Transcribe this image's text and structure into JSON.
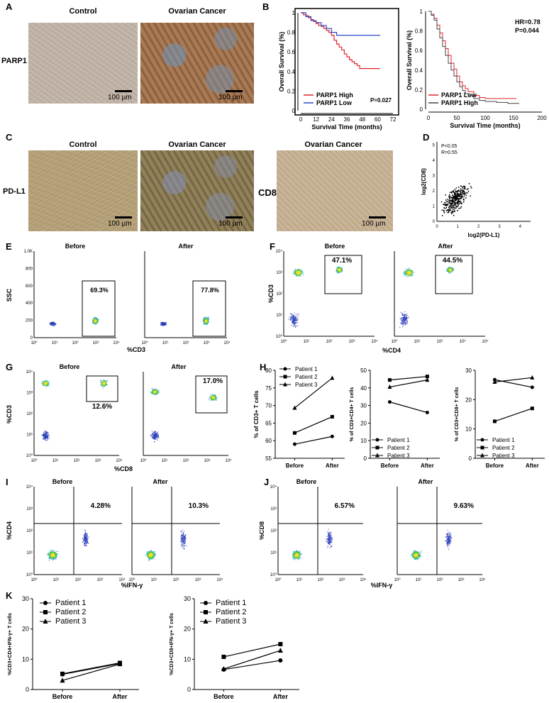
{
  "panels": {
    "A": {
      "letter": "A",
      "left_title": "Control",
      "right_title": "Ovarian Cancer",
      "row_label": "PARP1",
      "scale": "100 µm"
    },
    "B": {
      "letter": "B"
    },
    "C": {
      "letter": "C",
      "t1": "Control",
      "t2": "Ovarian Cancer",
      "t3": "Ovarian Cancer",
      "row_label": "PD-L1",
      "cd8_label": "CD8",
      "scale": "100 µm"
    },
    "D": {
      "letter": "D",
      "stat1": "P<0.05",
      "stat2": "R=0.55",
      "xlabel": "log2(PD-L1)",
      "ylabel": "log2(CD8)"
    },
    "E": {
      "letter": "E",
      "before": "Before",
      "after": "After",
      "ylabel": "SSC",
      "xlabel": "%CD3",
      "pct_before": "69.3%",
      "pct_after": "77.8%"
    },
    "F": {
      "letter": "F",
      "before": "Before",
      "after": "After",
      "ylabel": "%CD3",
      "xlabel": "%CD4",
      "pct_before": "47.1%",
      "pct_after": "44.5%"
    },
    "G": {
      "letter": "G",
      "before": "Before",
      "after": "After",
      "ylabel": "%CD3",
      "xlabel": "%CD8",
      "pct_before": "12.6%",
      "pct_after": "17.0%"
    },
    "H": {
      "letter": "H"
    },
    "I": {
      "letter": "I",
      "before": "Before",
      "after": "After",
      "ylabel": "%CD4",
      "xlabel": "%IFN-γ",
      "pct_before": "4.28%",
      "pct_after": "10.3%"
    },
    "J": {
      "letter": "J",
      "before": "Before",
      "after": "After",
      "ylabel": "%CD8",
      "xlabel": "%IFN-γ",
      "pct_before": "6.57%",
      "pct_after": "9.63%"
    },
    "K": {
      "letter": "K"
    }
  },
  "chart_data": [
    {
      "id": "B1",
      "type": "line",
      "xlabel": "Survival Time (months)",
      "ylabel": "Overall Survival (%)",
      "xticks": [
        0,
        12,
        24,
        36,
        48,
        60,
        72
      ],
      "yticks": [
        0,
        0.2,
        0.4,
        0.6,
        0.8,
        1.0
      ],
      "xlim": [
        0,
        72
      ],
      "ylim": [
        0,
        1.0
      ],
      "annotation": "P=0.027",
      "series": [
        {
          "name": "PARP1 High",
          "color": "#e0242a",
          "x": [
            0,
            2,
            4,
            6,
            8,
            10,
            12,
            14,
            16,
            18,
            20,
            22,
            24,
            26,
            28,
            30,
            32,
            34,
            36,
            38,
            40,
            42,
            44,
            46,
            50,
            56,
            62
          ],
          "y": [
            1.0,
            0.98,
            0.97,
            0.95,
            0.93,
            0.91,
            0.89,
            0.87,
            0.86,
            0.84,
            0.82,
            0.8,
            0.77,
            0.72,
            0.68,
            0.65,
            0.62,
            0.58,
            0.55,
            0.52,
            0.5,
            0.48,
            0.46,
            0.43,
            0.43,
            0.43,
            0.43
          ]
        },
        {
          "name": "PARP1 Low",
          "color": "#2a48c8",
          "x": [
            0,
            4,
            8,
            12,
            16,
            20,
            24,
            28,
            32,
            40,
            50,
            62
          ],
          "y": [
            1.0,
            0.96,
            0.92,
            0.9,
            0.87,
            0.84,
            0.8,
            0.77,
            0.77,
            0.77,
            0.77,
            0.77
          ]
        }
      ]
    },
    {
      "id": "B2",
      "type": "line",
      "xlabel": "Survival Time (months)",
      "ylabel": "Overall Survival (%)",
      "xticks": [
        0,
        50,
        100,
        150,
        200
      ],
      "yticks": [
        0,
        0.2,
        0.4,
        0.6,
        0.8,
        1.0
      ],
      "xlim": [
        0,
        200
      ],
      "ylim": [
        0,
        1.0
      ],
      "annotation1": "HR=0.78",
      "annotation2": "P=0.044",
      "series": [
        {
          "name": "PARP1  Low",
          "color": "#e0242a",
          "x": [
            0,
            5,
            10,
            15,
            20,
            25,
            30,
            35,
            40,
            45,
            50,
            55,
            60,
            65,
            70,
            80,
            90,
            100,
            120,
            140,
            155
          ],
          "y": [
            1.0,
            0.97,
            0.93,
            0.86,
            0.78,
            0.7,
            0.62,
            0.55,
            0.47,
            0.41,
            0.34,
            0.28,
            0.24,
            0.21,
            0.18,
            0.14,
            0.12,
            0.11,
            0.11,
            0.11,
            0.11
          ]
        },
        {
          "name": "PARP1  High",
          "color": "#444444",
          "x": [
            0,
            5,
            10,
            15,
            20,
            25,
            30,
            35,
            40,
            45,
            50,
            55,
            60,
            65,
            70,
            80,
            90,
            100,
            120,
            140,
            160
          ],
          "y": [
            1.0,
            0.96,
            0.91,
            0.82,
            0.73,
            0.64,
            0.55,
            0.47,
            0.4,
            0.34,
            0.28,
            0.23,
            0.19,
            0.16,
            0.14,
            0.11,
            0.09,
            0.08,
            0.07,
            0.06,
            0.06
          ]
        }
      ]
    },
    {
      "id": "H1",
      "type": "line",
      "ylabel": "% of CD3+ T cells",
      "categories": [
        "Before",
        "After"
      ],
      "yticks": [
        55,
        60,
        65,
        70,
        75,
        80
      ],
      "ylim": [
        55,
        80
      ],
      "series": [
        {
          "name": "Patient 1",
          "marker": "circle",
          "values": [
            59.0,
            61.2
          ]
        },
        {
          "name": "Patient 2",
          "marker": "square",
          "values": [
            62.2,
            66.8
          ]
        },
        {
          "name": "Patient 3",
          "marker": "triangle",
          "values": [
            69.3,
            77.8
          ]
        }
      ]
    },
    {
      "id": "H2",
      "type": "line",
      "ylabel": "% of CD3+CD4+ T cells",
      "categories": [
        "Before",
        "After"
      ],
      "yticks": [
        0,
        10,
        20,
        30,
        40,
        50
      ],
      "ylim": [
        0,
        50
      ],
      "series": [
        {
          "name": "Patient 1",
          "marker": "circle",
          "values": [
            32.0,
            26.0
          ]
        },
        {
          "name": "Patient 2",
          "marker": "square",
          "values": [
            44.5,
            46.5
          ]
        },
        {
          "name": "Patient 3",
          "marker": "triangle",
          "values": [
            40.5,
            44.5
          ]
        }
      ]
    },
    {
      "id": "H3",
      "type": "line",
      "ylabel": "% of CD3+CD8+ T cells",
      "categories": [
        "Before",
        "After"
      ],
      "yticks": [
        0,
        10,
        20,
        30
      ],
      "ylim": [
        0,
        30
      ],
      "series": [
        {
          "name": "Patient 1",
          "marker": "circle",
          "values": [
            26.8,
            24.2
          ]
        },
        {
          "name": "Patient 2",
          "marker": "square",
          "values": [
            12.6,
            17.0
          ]
        },
        {
          "name": "Patient 3",
          "marker": "triangle",
          "values": [
            26.0,
            27.5
          ]
        }
      ]
    },
    {
      "id": "K1",
      "type": "line",
      "ylabel": "%CD3+CD4+IFN-γ+ T cells",
      "categories": [
        "Before",
        "After"
      ],
      "yticks": [
        0,
        10,
        20,
        30
      ],
      "ylim": [
        0,
        30
      ],
      "series": [
        {
          "name": "Patient 1",
          "marker": "circle",
          "values": [
            5.0,
            8.6
          ]
        },
        {
          "name": "Patient 2",
          "marker": "square",
          "values": [
            5.2,
            8.8
          ]
        },
        {
          "name": "Patient 3",
          "marker": "triangle",
          "values": [
            3.0,
            8.4
          ]
        }
      ]
    },
    {
      "id": "K2",
      "type": "line",
      "ylabel": "%CD3+CD8+IFN-γ+ T cells",
      "categories": [
        "Before",
        "After"
      ],
      "yticks": [
        0,
        10,
        20,
        30
      ],
      "ylim": [
        0,
        30
      ],
      "series": [
        {
          "name": "Patient 1",
          "marker": "circle",
          "values": [
            6.6,
            9.6
          ]
        },
        {
          "name": "Patient 2",
          "marker": "square",
          "values": [
            10.8,
            15.0
          ]
        },
        {
          "name": "Patient 3",
          "marker": "triangle",
          "values": [
            6.8,
            12.9
          ]
        }
      ]
    },
    {
      "id": "D",
      "type": "scatter",
      "xlabel": "log2(PD-L1)",
      "ylabel": "log2(CD8)",
      "xticks": [
        0,
        1,
        2,
        3,
        4
      ],
      "yticks": [
        0,
        1,
        2,
        3,
        4,
        5
      ],
      "xlim": [
        0,
        4.5
      ],
      "ylim": [
        0,
        5.2
      ]
    }
  ]
}
